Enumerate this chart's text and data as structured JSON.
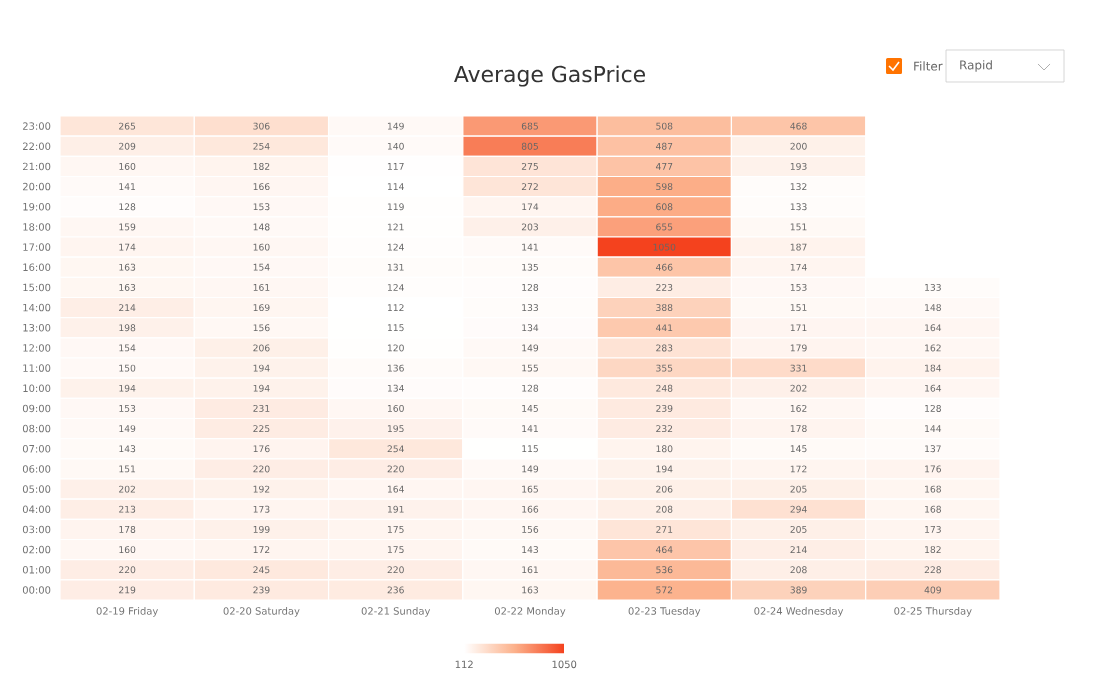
{
  "chart_data": {
    "type": "heatmap",
    "title": "Average GasPrice",
    "categories": [
      "02-19 Friday",
      "02-20 Saturday",
      "02-21 Sunday",
      "02-22 Monday",
      "02-23 Tuesday",
      "02-24 Wednesday",
      "02-25 Thursday"
    ],
    "y_categories": [
      "23:00",
      "22:00",
      "21:00",
      "20:00",
      "19:00",
      "18:00",
      "17:00",
      "16:00",
      "15:00",
      "14:00",
      "13:00",
      "12:00",
      "11:00",
      "10:00",
      "09:00",
      "08:00",
      "07:00",
      "06:00",
      "05:00",
      "04:00",
      "03:00",
      "02:00",
      "01:00",
      "00:00"
    ],
    "cells": [
      [
        265,
        306,
        149,
        685,
        508,
        468,
        null
      ],
      [
        209,
        254,
        140,
        805,
        487,
        200,
        null
      ],
      [
        160,
        182,
        117,
        275,
        477,
        193,
        null
      ],
      [
        141,
        166,
        114,
        272,
        598,
        132,
        null
      ],
      [
        128,
        153,
        119,
        174,
        608,
        133,
        null
      ],
      [
        159,
        148,
        121,
        203,
        655,
        151,
        null
      ],
      [
        174,
        160,
        124,
        141,
        1050,
        187,
        null
      ],
      [
        163,
        154,
        131,
        135,
        466,
        174,
        null
      ],
      [
        163,
        161,
        124,
        128,
        223,
        153,
        133
      ],
      [
        214,
        169,
        112,
        133,
        388,
        151,
        148
      ],
      [
        198,
        156,
        115,
        134,
        441,
        171,
        164
      ],
      [
        154,
        206,
        120,
        149,
        283,
        179,
        162
      ],
      [
        150,
        194,
        136,
        155,
        355,
        331,
        184
      ],
      [
        194,
        194,
        134,
        128,
        248,
        202,
        164
      ],
      [
        153,
        231,
        160,
        145,
        239,
        162,
        128
      ],
      [
        149,
        225,
        195,
        141,
        232,
        178,
        144
      ],
      [
        143,
        176,
        254,
        115,
        180,
        145,
        137
      ],
      [
        151,
        220,
        220,
        149,
        194,
        172,
        176
      ],
      [
        202,
        192,
        164,
        165,
        206,
        205,
        168
      ],
      [
        213,
        173,
        191,
        166,
        208,
        294,
        168
      ],
      [
        178,
        199,
        175,
        156,
        271,
        205,
        173
      ],
      [
        160,
        172,
        175,
        143,
        464,
        214,
        182
      ],
      [
        220,
        245,
        220,
        161,
        536,
        208,
        228
      ],
      [
        219,
        239,
        236,
        163,
        572,
        389,
        409
      ]
    ],
    "data_labels": true,
    "clim": [
      112,
      1050
    ],
    "cticks": [
      112,
      1050
    ],
    "annotations": [
      "Filter",
      "Rapid"
    ]
  }
}
